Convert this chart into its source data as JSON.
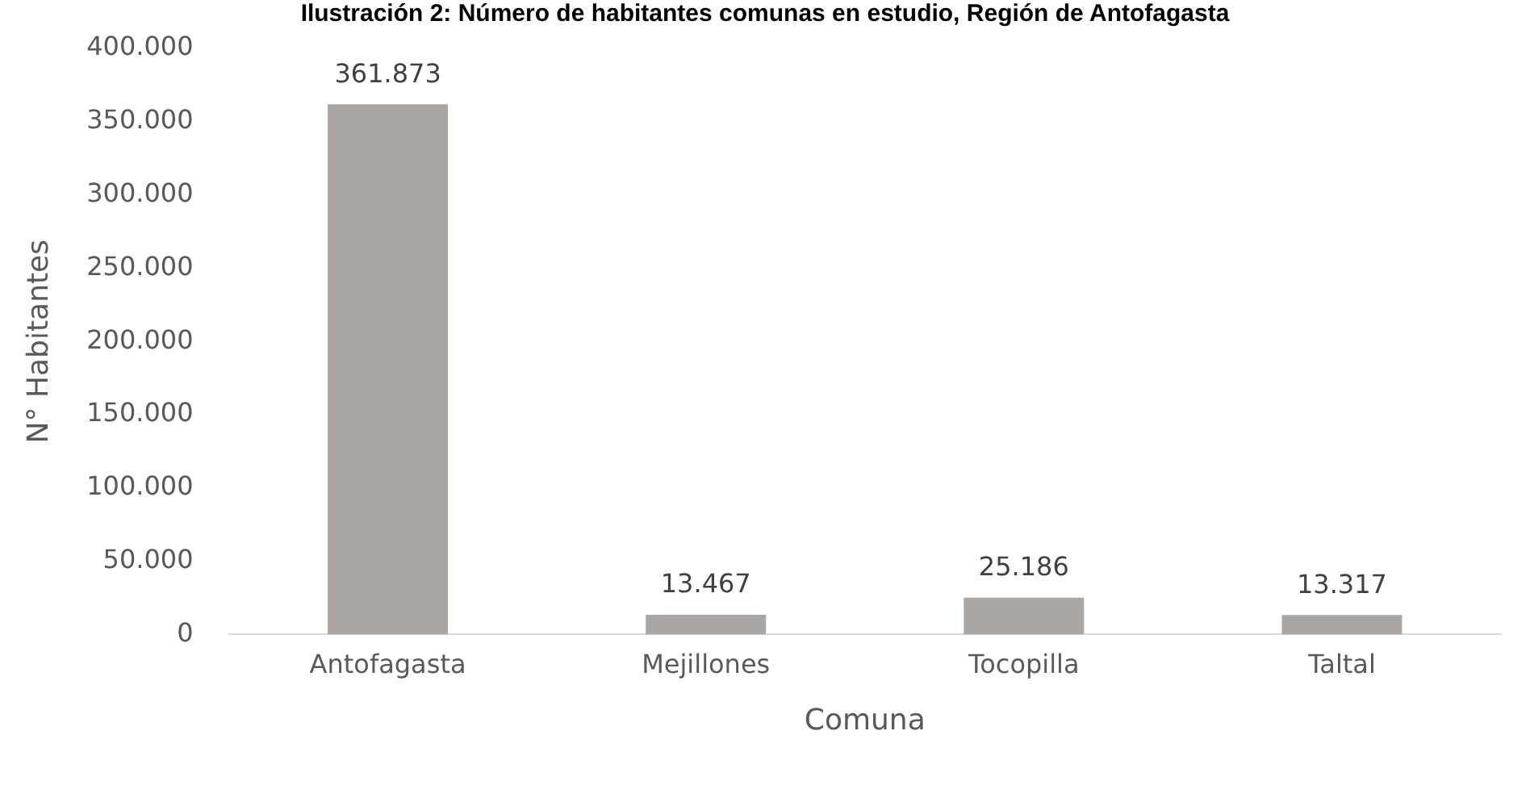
{
  "chart_data": {
    "type": "bar",
    "title": "Ilustración 2: Número de habitantes comunas en estudio, Región de Antofagasta",
    "xlabel": "Comuna",
    "ylabel": "N° Habitantes",
    "categories": [
      "Antofagasta",
      "Mejillones",
      "Tocopilla",
      "Taltal"
    ],
    "values": [
      361873,
      13467,
      25186,
      13317
    ],
    "value_labels": [
      "361.873",
      "13.467",
      "25.186",
      "13.317"
    ],
    "color": "#aba6a4",
    "ylim": [
      0,
      400000
    ],
    "yticks": [
      0,
      {
        "value": 50000,
        "label": "50.000"
      },
      {
        "value": 100000,
        "label": "100.000"
      },
      {
        "value": 150000,
        "label": "150.000"
      },
      {
        "value": 200000,
        "label": "200.000"
      },
      {
        "value": 250000,
        "label": "250.000"
      },
      {
        "value": 300000,
        "label": "300.000"
      },
      {
        "value": 350000,
        "label": "350.000"
      },
      {
        "value": 400000,
        "label": "400.000"
      }
    ],
    "grid": false,
    "legend": false
  }
}
